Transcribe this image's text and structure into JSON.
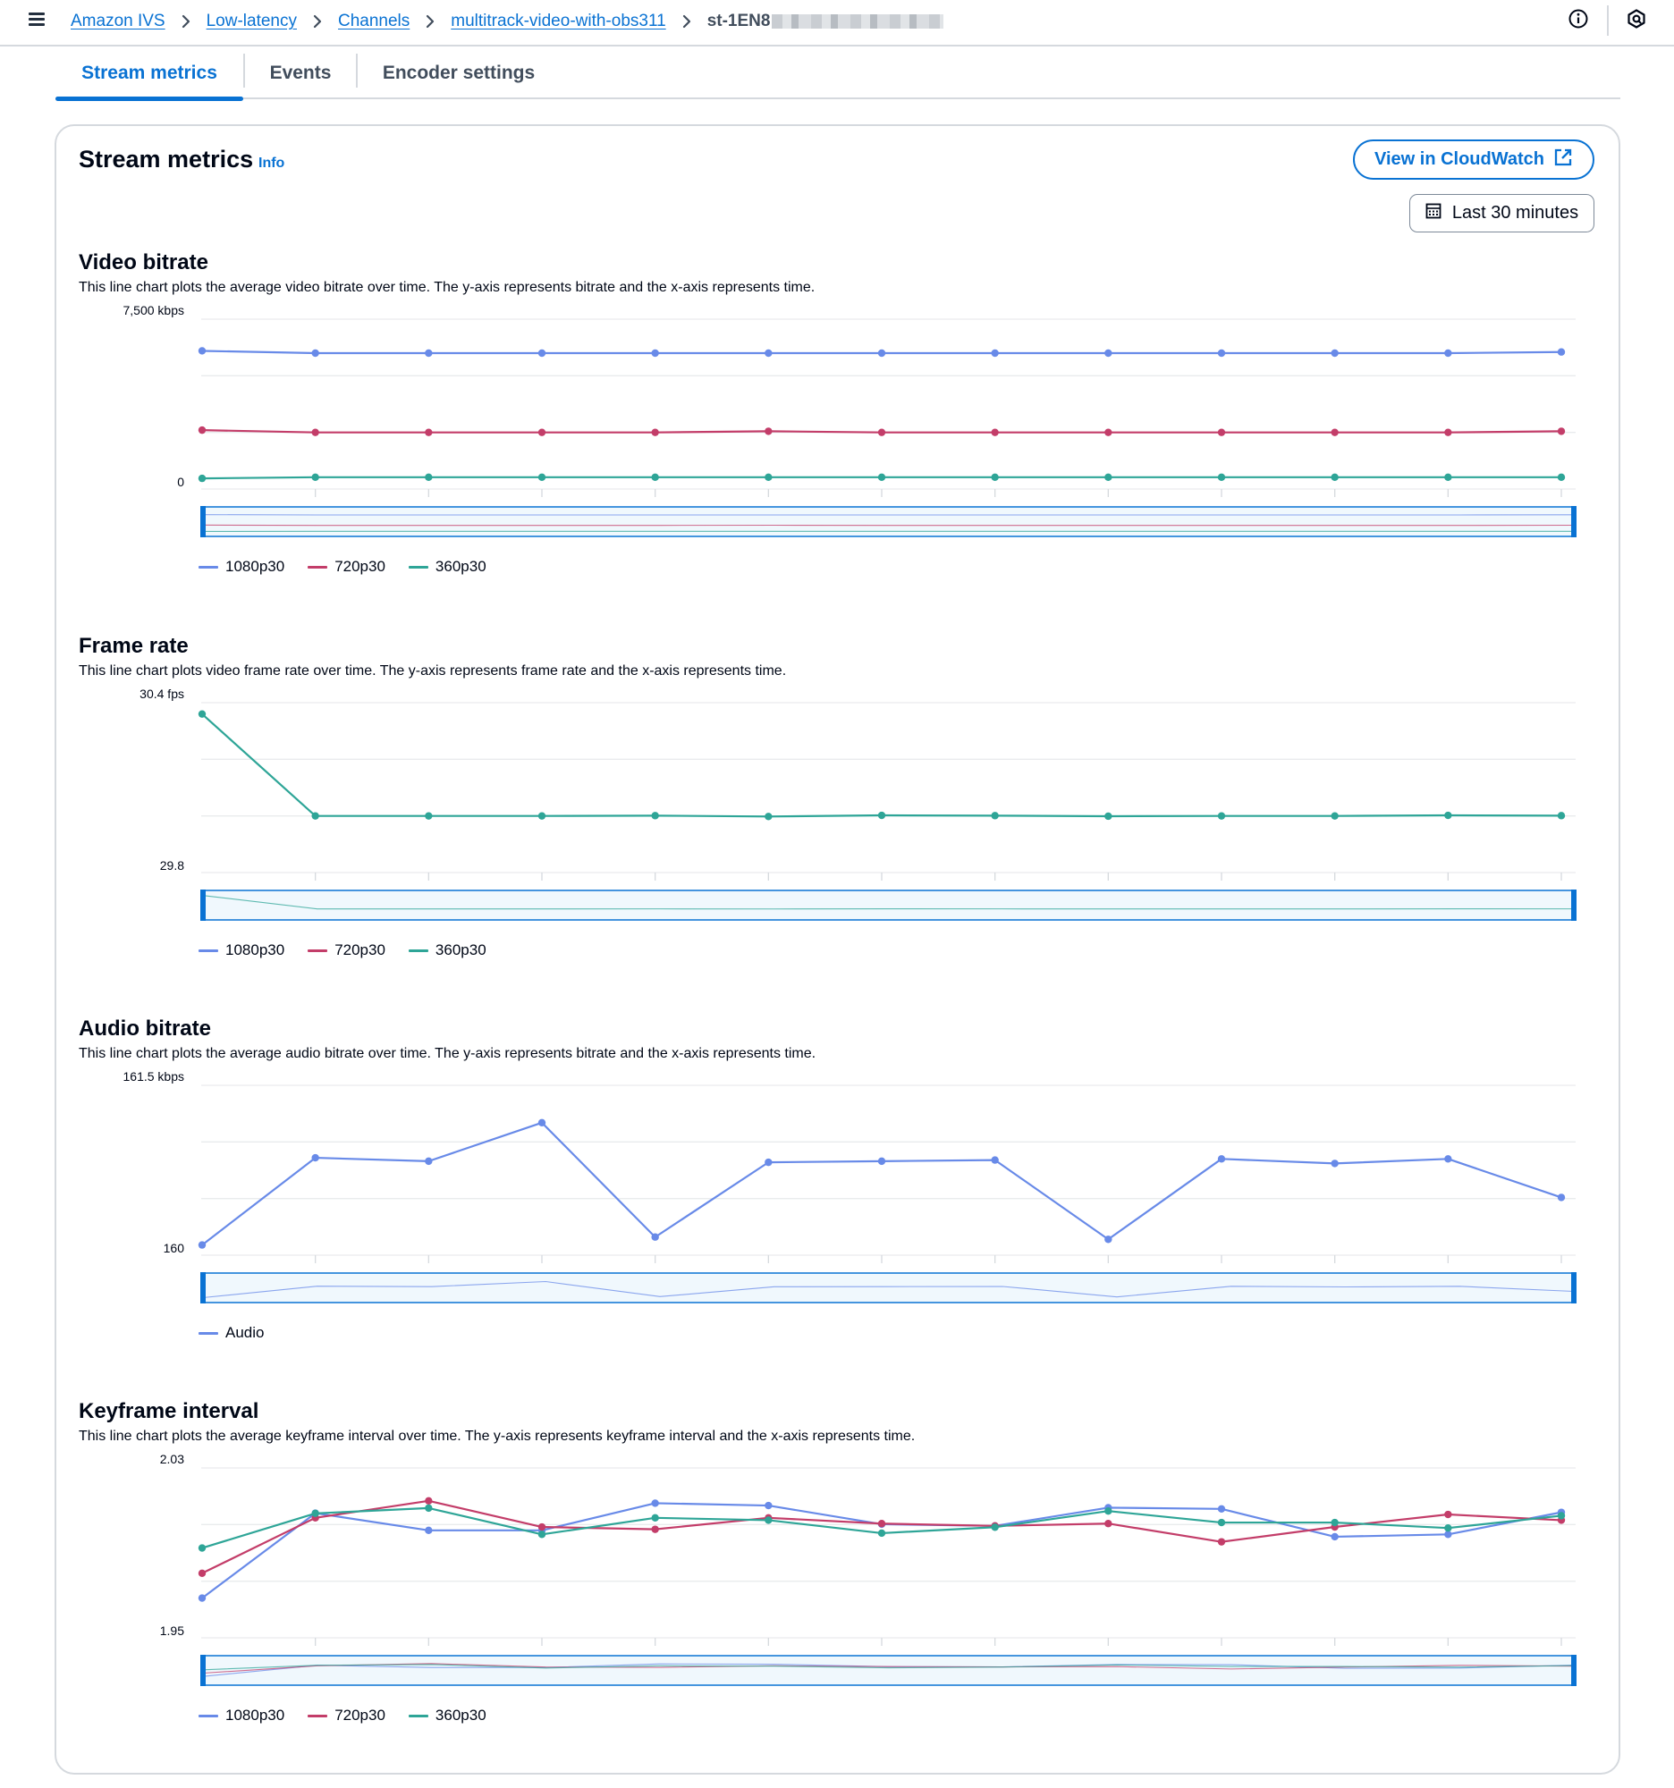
{
  "breadcrumb": {
    "items": [
      "Amazon IVS",
      "Low-latency",
      "Channels",
      "multitrack-video-with-obs311"
    ],
    "current": "st-1EN8"
  },
  "tabs": [
    "Stream metrics",
    "Events",
    "Encoder settings"
  ],
  "panel": {
    "title": "Stream metrics",
    "info_label": "Info",
    "cloudwatch_button": "View in CloudWatch",
    "time_range_button": "Last 30 minutes"
  },
  "colors": {
    "accent": "#0972d3",
    "1080p30": "#688ae8",
    "720p30": "#c33d69",
    "360p30": "#2ea597",
    "Audio": "#688ae8"
  },
  "icons": [
    "menu-icon",
    "chevron-right-icon",
    "info-circle-icon",
    "notifications-icon",
    "external-link-icon",
    "calendar-icon"
  ],
  "chart_data": [
    {
      "type": "line",
      "title": "Video bitrate",
      "description": "This line chart plots the average video bitrate over time. The y-axis represents bitrate and the x-axis represents time.",
      "ylim": [
        0,
        7500
      ],
      "ytick_top": "7,500 kbps",
      "ytick_bottom": "0",
      "grid": true,
      "legend": "bottom",
      "series": [
        {
          "name": "1080p30",
          "values": [
            6100,
            6000,
            6000,
            6000,
            6000,
            6000,
            6000,
            6000,
            6000,
            6000,
            6000,
            6000,
            6050
          ]
        },
        {
          "name": "720p30",
          "values": [
            2600,
            2500,
            2500,
            2500,
            2500,
            2550,
            2500,
            2500,
            2500,
            2500,
            2500,
            2500,
            2550
          ]
        },
        {
          "name": "360p30",
          "values": [
            470,
            520,
            520,
            520,
            520,
            520,
            520,
            520,
            520,
            520,
            520,
            520,
            520
          ]
        }
      ]
    },
    {
      "type": "line",
      "title": "Frame rate",
      "description": "This line chart plots video frame rate over time. The y-axis represents frame rate and the x-axis represents time.",
      "ylim": [
        29.8,
        30.4
      ],
      "ytick_top": "30.4 fps",
      "ytick_bottom": "29.8",
      "grid": true,
      "legend": "bottom",
      "series": [
        {
          "name": "1080p30",
          "values": []
        },
        {
          "name": "720p30",
          "values": []
        },
        {
          "name": "360p30",
          "values": [
            30.36,
            30.0,
            30.0,
            30.0,
            30.001,
            29.998,
            30.002,
            30.001,
            29.999,
            30.0,
            30.0,
            30.002,
            30.001
          ]
        }
      ]
    },
    {
      "type": "line",
      "title": "Audio bitrate",
      "description": "This line chart plots the average audio bitrate over time. The y-axis represents bitrate and the x-axis represents time.",
      "ylim": [
        160,
        161.5
      ],
      "ytick_top": "161.5 kbps",
      "ytick_bottom": "160",
      "grid": true,
      "legend": "bottom",
      "series": [
        {
          "name": "Audio",
          "values": [
            160.09,
            160.86,
            160.83,
            161.17,
            160.16,
            160.82,
            160.83,
            160.84,
            160.14,
            160.85,
            160.81,
            160.85,
            160.51
          ]
        }
      ]
    },
    {
      "type": "line",
      "title": "Keyframe interval",
      "description": "This line chart plots the average keyframe interval over time. The y-axis represents keyframe interval and the x-axis represents time.",
      "ylim": [
        1.95,
        2.03
      ],
      "ytick_top": "2.03",
      "ytick_bottom": "1.95",
      "grid": true,
      "legend": "bottom",
      "series": [
        {
          "name": "1080p30",
          "values": [
            1.9687,
            2.0087,
            2.0006,
            2.0006,
            2.0134,
            2.0123,
            2.0035,
            2.0027,
            2.0113,
            2.0107,
            1.9976,
            1.9987,
            2.0091
          ]
        },
        {
          "name": "720p30",
          "values": [
            1.9804,
            2.0065,
            2.0145,
            2.0022,
            2.0011,
            2.0065,
            2.0038,
            2.0027,
            2.0038,
            1.9952,
            2.0022,
            2.0081,
            2.0054
          ]
        },
        {
          "name": "360p30",
          "values": [
            1.9923,
            2.0086,
            2.0111,
            1.9987,
            2.0065,
            2.0054,
            1.9993,
            2.0021,
            2.0097,
            2.0043,
            2.0043,
            2.0017,
            2.0075
          ]
        }
      ]
    }
  ]
}
